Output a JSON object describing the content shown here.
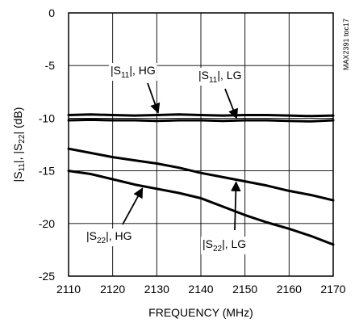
{
  "chart_data": {
    "type": "line",
    "title": "",
    "xlabel": "FREQUENCY (MHz)",
    "ylabel": "|S11|, |S22| (dB)",
    "ylabel_parts": [
      "|S",
      "11",
      "|, |S",
      "22",
      "| (dB)"
    ],
    "xlim": [
      2110,
      2170
    ],
    "ylim": [
      -25,
      0
    ],
    "xticks": [
      2110,
      2120,
      2130,
      2140,
      2150,
      2160,
      2170
    ],
    "yticks": [
      0,
      -5,
      -10,
      -15,
      -20,
      -25
    ],
    "grid": true,
    "watermark": "MAX2391 toc17",
    "series": [
      {
        "name": "|S11|, HG",
        "label_parts": [
          "|S",
          "11",
          "|, HG"
        ],
        "color": "#000000",
        "x": [
          2110,
          2115,
          2120,
          2125,
          2130,
          2135,
          2140,
          2145,
          2150,
          2155,
          2160,
          2165,
          2170
        ],
        "y": [
          -9.7,
          -9.65,
          -9.7,
          -9.75,
          -9.7,
          -9.65,
          -9.7,
          -9.75,
          -9.7,
          -9.7,
          -9.75,
          -9.8,
          -9.75
        ]
      },
      {
        "name": "|S11|, LG",
        "label_parts": [
          "|S",
          "11",
          "|, LG"
        ],
        "color": "#000000",
        "x": [
          2110,
          2115,
          2120,
          2125,
          2130,
          2135,
          2140,
          2145,
          2150,
          2155,
          2160,
          2165,
          2170
        ],
        "y": [
          -10.2,
          -10.15,
          -10.2,
          -10.2,
          -10.25,
          -10.2,
          -10.2,
          -10.25,
          -10.2,
          -10.2,
          -10.25,
          -10.3,
          -10.2
        ]
      },
      {
        "name": "|S22|, HG",
        "label_parts": [
          "|S",
          "22",
          "|, HG"
        ],
        "color": "#000000",
        "x": [
          2110,
          2115,
          2120,
          2125,
          2130,
          2135,
          2140,
          2145,
          2150,
          2155,
          2160,
          2165,
          2170
        ],
        "y": [
          -15.0,
          -15.3,
          -15.8,
          -16.3,
          -16.7,
          -17.1,
          -17.6,
          -18.4,
          -19.2,
          -19.9,
          -20.5,
          -21.2,
          -22.0
        ]
      },
      {
        "name": "|S22|, LG",
        "label_parts": [
          "|S",
          "22",
          "|, LG"
        ],
        "color": "#000000",
        "x": [
          2110,
          2115,
          2120,
          2125,
          2130,
          2135,
          2140,
          2145,
          2150,
          2155,
          2160,
          2165,
          2170
        ],
        "y": [
          -12.9,
          -13.3,
          -13.7,
          -14.0,
          -14.3,
          -14.7,
          -15.2,
          -15.6,
          -16.0,
          -16.4,
          -16.9,
          -17.3,
          -17.8
        ]
      }
    ]
  }
}
